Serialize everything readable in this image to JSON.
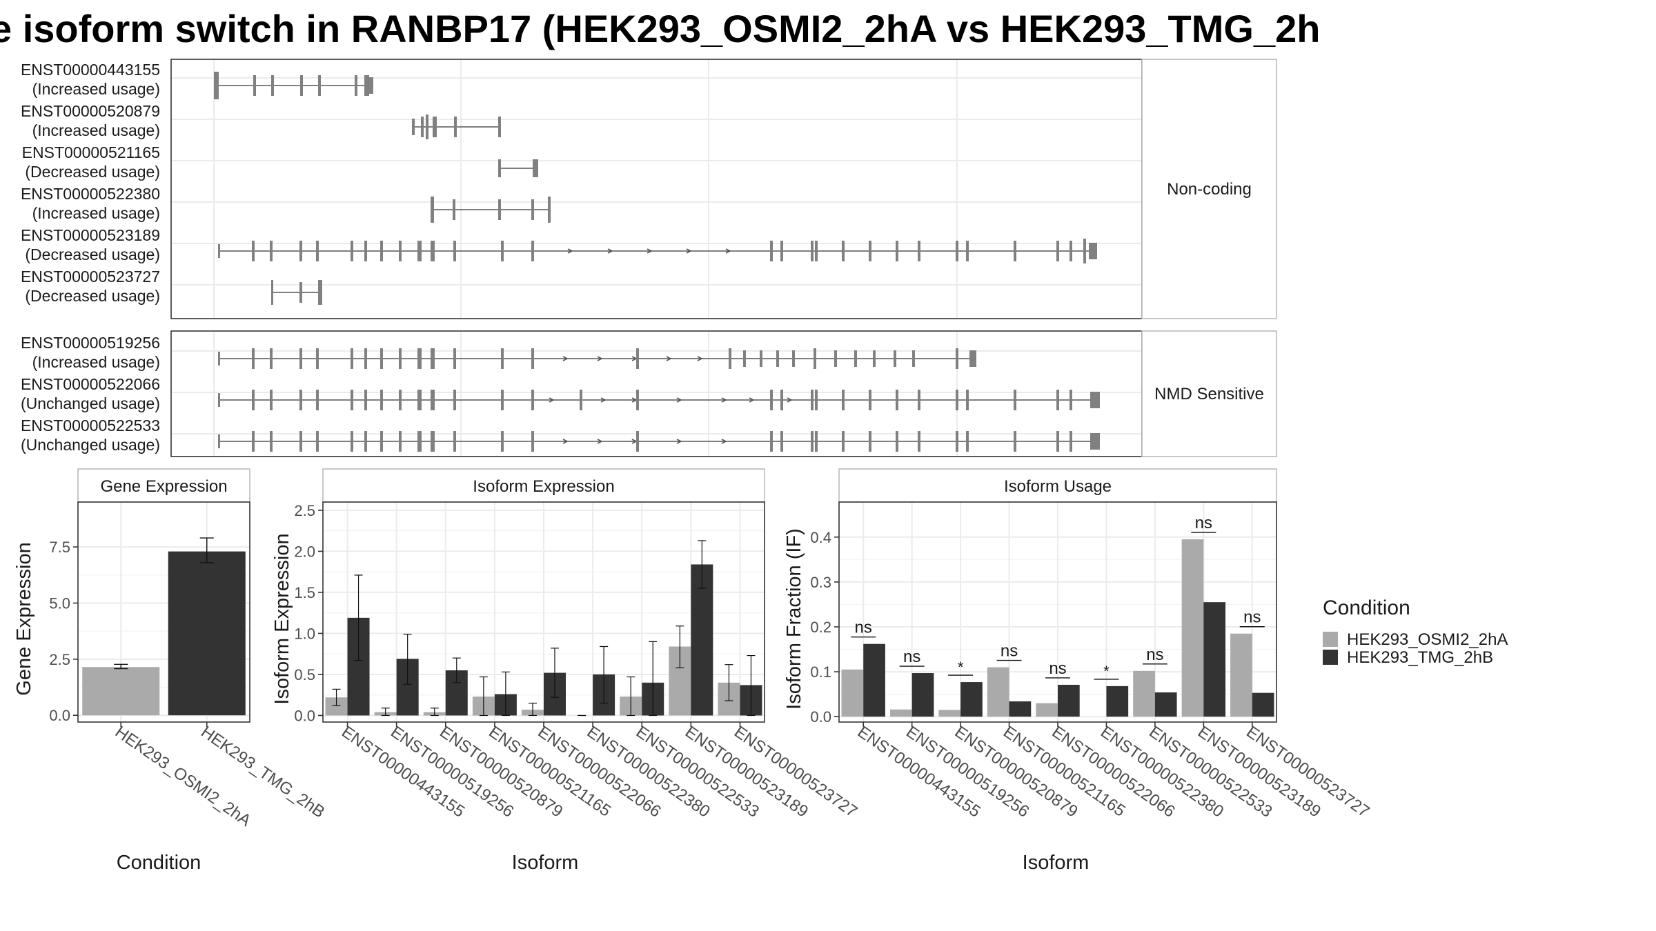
{
  "title": "e isoform switch in RANBP17 (HEK293_OSMI2_2hA vs HEK293_TMG_2h",
  "colors": {
    "osmi": "#AAAAAA",
    "tmg": "#333333",
    "structure": "#808080",
    "grid": "#EBEBEB"
  },
  "structure_panels": [
    {
      "strip": "Non-coding",
      "transcripts": [
        {
          "id": "ENST00000443155",
          "usage": "(Increased usage)"
        },
        {
          "id": "ENST00000520879",
          "usage": "(Increased usage)"
        },
        {
          "id": "ENST00000521165",
          "usage": "(Decreased usage)"
        },
        {
          "id": "ENST00000522380",
          "usage": "(Increased usage)"
        },
        {
          "id": "ENST00000523189",
          "usage": "(Decreased usage)"
        },
        {
          "id": "ENST00000523727",
          "usage": "(Decreased usage)"
        }
      ]
    },
    {
      "strip": "NMD Sensitive",
      "transcripts": [
        {
          "id": "ENST00000519256",
          "usage": "(Increased usage)"
        },
        {
          "id": "ENST00000522066",
          "usage": "(Unchanged usage)"
        },
        {
          "id": "ENST00000522533",
          "usage": "(Unchanged usage)"
        }
      ]
    }
  ],
  "legend": {
    "title": "Condition",
    "items": [
      "HEK293_OSMI2_2hA",
      "HEK293_TMG_2hB"
    ]
  },
  "chart_data": [
    {
      "type": "bar",
      "title": "Gene Expression",
      "xlabel": "Condition",
      "ylabel": "Gene Expression",
      "ylim": [
        -0.3,
        9.5
      ],
      "yticks": [
        0.0,
        2.5,
        5.0,
        7.5
      ],
      "ytick_labels": [
        "0.0",
        "2.5",
        "5.0",
        "7.5"
      ],
      "categories": [
        "HEK293_OSMI2_2hA",
        "HEK293_TMG_2hB"
      ],
      "values": [
        2.15,
        7.3
      ],
      "error": [
        [
          2.08,
          2.27
        ],
        [
          6.8,
          7.9
        ]
      ]
    },
    {
      "type": "bar",
      "title": "Isoform Expression",
      "xlabel": "Isoform",
      "ylabel": "Isoform Expression",
      "ylim": [
        -0.08,
        2.6
      ],
      "yticks": [
        0.0,
        0.5,
        1.0,
        1.5,
        2.0,
        2.5
      ],
      "ytick_labels": [
        "0.0",
        "0.5",
        "1.0",
        "1.5",
        "2.0",
        "2.5"
      ],
      "categories": [
        "ENST00000443155",
        "ENST00000519256",
        "ENST00000520879",
        "ENST00000521165",
        "ENST00000522066",
        "ENST00000522380",
        "ENST00000522533",
        "ENST00000523189",
        "ENST00000523727"
      ],
      "series": [
        {
          "name": "HEK293_OSMI2_2hA",
          "values": [
            0.22,
            0.04,
            0.04,
            0.23,
            0.07,
            0.0,
            0.23,
            0.84,
            0.4
          ],
          "error": [
            [
              0.12,
              0.32
            ],
            [
              0.0,
              0.09
            ],
            [
              0.0,
              0.09
            ],
            [
              0.0,
              0.47
            ],
            [
              0.0,
              0.15
            ],
            [
              0.0,
              0.0
            ],
            [
              0.0,
              0.47
            ],
            [
              0.58,
              1.09
            ],
            [
              0.18,
              0.62
            ]
          ]
        },
        {
          "name": "HEK293_TMG_2hB",
          "values": [
            1.19,
            0.69,
            0.55,
            0.26,
            0.52,
            0.5,
            0.4,
            1.84,
            0.37
          ],
          "error": [
            [
              0.67,
              1.71
            ],
            [
              0.38,
              0.99
            ],
            [
              0.4,
              0.7
            ],
            [
              0.0,
              0.53
            ],
            [
              0.22,
              0.82
            ],
            [
              0.15,
              0.84
            ],
            [
              0.0,
              0.9
            ],
            [
              1.55,
              2.13
            ],
            [
              0.0,
              0.73
            ]
          ]
        }
      ]
    },
    {
      "type": "bar",
      "title": "Isoform Usage",
      "xlabel": "Isoform",
      "ylabel": "Isoform Fraction (IF)",
      "ylim": [
        -0.012,
        0.478
      ],
      "yticks": [
        0.0,
        0.1,
        0.2,
        0.3,
        0.4
      ],
      "ytick_labels": [
        "0.0",
        "0.1",
        "0.2",
        "0.3",
        "0.4"
      ],
      "categories": [
        "ENST00000443155",
        "ENST00000519256",
        "ENST00000520879",
        "ENST00000521165",
        "ENST00000522066",
        "ENST00000522380",
        "ENST00000522533",
        "ENST00000523189",
        "ENST00000523727"
      ],
      "series": [
        {
          "name": "HEK293_OSMI2_2hA",
          "values": [
            0.105,
            0.016,
            0.015,
            0.11,
            0.03,
            0.0,
            0.102,
            0.395,
            0.185
          ]
        },
        {
          "name": "HEK293_TMG_2hB",
          "values": [
            0.162,
            0.097,
            0.077,
            0.034,
            0.071,
            0.068,
            0.054,
            0.255,
            0.053
          ]
        }
      ],
      "significance": [
        "ns",
        "ns",
        "*",
        "ns",
        "ns",
        "*",
        "ns",
        "ns",
        "ns"
      ]
    }
  ]
}
